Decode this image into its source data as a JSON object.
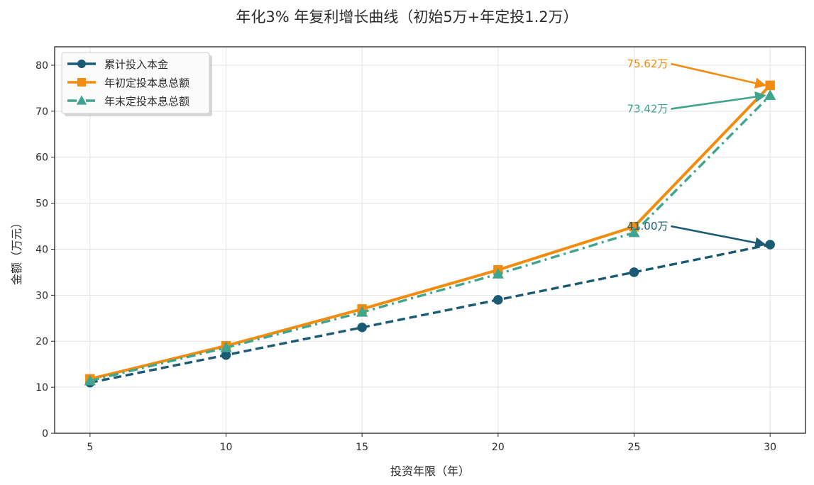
{
  "chart_data": {
    "type": "line",
    "title": "年化3% 年复利增长曲线（初始5万+年定投1.2万）",
    "xlabel": "投资年限（年）",
    "ylabel": "金额（万元）",
    "x": [
      5,
      10,
      15,
      20,
      25,
      30
    ],
    "xticks": [
      5,
      10,
      15,
      20,
      25,
      30
    ],
    "yticks": [
      0,
      10,
      20,
      30,
      40,
      50,
      60,
      70,
      80
    ],
    "xlim": [
      3.7,
      31.3
    ],
    "ylim": [
      0,
      84
    ],
    "grid": true,
    "legend_position": "upper left",
    "series": [
      {
        "name": "累计投入本金",
        "values": [
          11,
          17,
          23,
          29,
          35,
          41
        ],
        "color": "#1a5a72",
        "linestyle": "dashed",
        "marker": "circle"
      },
      {
        "name": "年初定投本息总额",
        "values": [
          11.8,
          19.0,
          27.0,
          35.5,
          44.9,
          75.62
        ],
        "color": "#f28c0f",
        "linestyle": "solid",
        "marker": "square"
      },
      {
        "name": "年末定投本息总额",
        "values": [
          11.4,
          18.6,
          26.3,
          34.6,
          43.6,
          73.42
        ],
        "color": "#3fa58e",
        "linestyle": "dashdot",
        "marker": "triangle"
      }
    ],
    "annotations": [
      {
        "text": "75.62万",
        "x": 30,
        "y": 75.62,
        "text_x": 26.25,
        "text_y": 80.3,
        "color": "#f28c0f"
      },
      {
        "text": "73.42万",
        "x": 30,
        "y": 73.42,
        "text_x": 26.25,
        "text_y": 70.5,
        "color": "#3fa58e"
      },
      {
        "text": "41.00万",
        "x": 30,
        "y": 41.0,
        "text_x": 26.25,
        "text_y": 45.0,
        "color": "#1a5a72"
      }
    ]
  }
}
